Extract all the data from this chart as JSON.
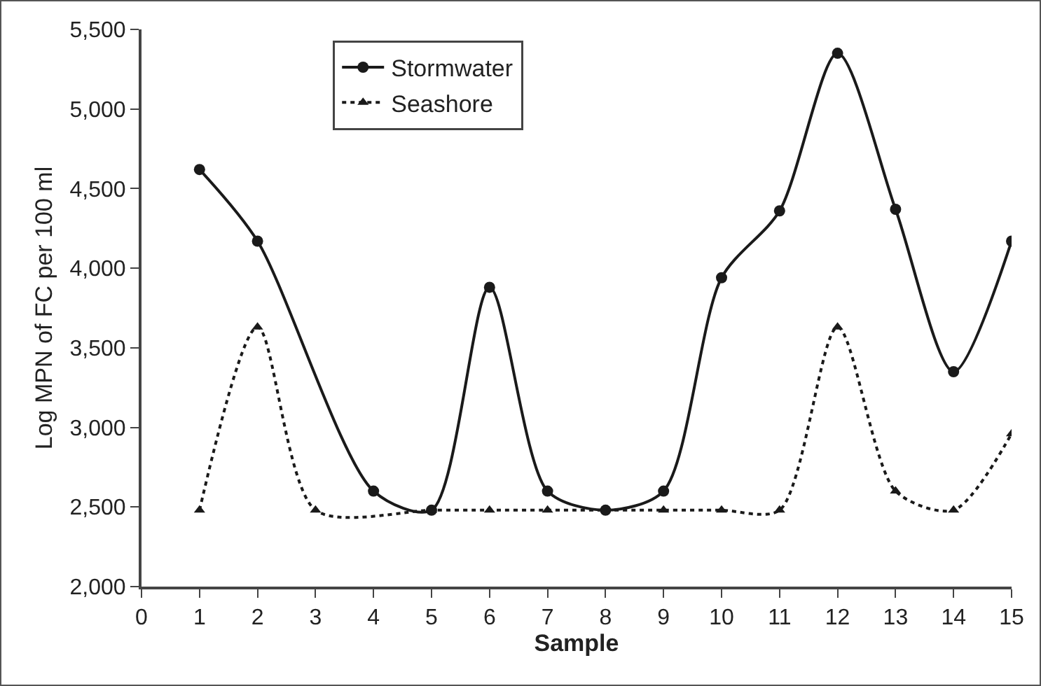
{
  "chart_data": {
    "type": "line",
    "xlabel": "Sample",
    "ylabel": "Log MPN of FC per 100 ml",
    "x": [
      1,
      2,
      3,
      4,
      5,
      6,
      7,
      8,
      9,
      10,
      11,
      12,
      13,
      14,
      15
    ],
    "series": [
      {
        "name": "Stormwater",
        "color": "#1a1a1a",
        "marker": "circle",
        "line_style": "solid",
        "values": [
          4620,
          4170,
          null,
          2600,
          2480,
          3880,
          2600,
          2480,
          2600,
          3940,
          4360,
          5350,
          4370,
          3350,
          4170
        ]
      },
      {
        "name": "Seashore",
        "color": "#1a1a1a",
        "marker": "triangle",
        "line_style": "dotted",
        "values": [
          2480,
          3630,
          2480,
          null,
          2480,
          2480,
          2480,
          null,
          2480,
          2480,
          2480,
          3630,
          2600,
          2480,
          2960
        ]
      }
    ],
    "xlim": [
      0,
      15
    ],
    "xticks": [
      0,
      1,
      2,
      3,
      4,
      5,
      6,
      7,
      8,
      9,
      10,
      11,
      12,
      13,
      14,
      15
    ],
    "ylim": [
      2000,
      5500
    ],
    "yticks": [
      {
        "value": 2000,
        "label": "2,000"
      },
      {
        "value": 2500,
        "label": "2,500"
      },
      {
        "value": 3000,
        "label": "3,000"
      },
      {
        "value": 3500,
        "label": "3,500"
      },
      {
        "value": 4000,
        "label": "4,000"
      },
      {
        "value": 4500,
        "label": "4,500"
      },
      {
        "value": 5000,
        "label": "5,000"
      },
      {
        "value": 5500,
        "label": "5,500"
      }
    ],
    "grid": false,
    "legend": "top"
  }
}
